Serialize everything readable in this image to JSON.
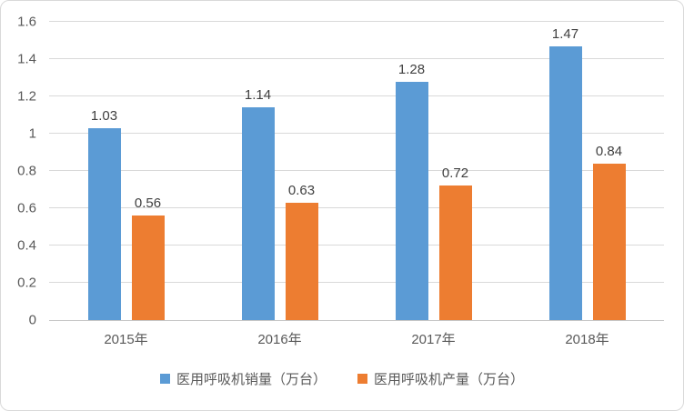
{
  "chart_data": {
    "type": "bar",
    "title": "",
    "xlabel": "",
    "ylabel": "",
    "categories": [
      "2015年",
      "2016年",
      "2017年",
      "2018年"
    ],
    "series": [
      {
        "name": "医用呼吸机销量（万台）",
        "color": "#5B9BD5",
        "values": [
          1.03,
          1.14,
          1.28,
          1.47
        ]
      },
      {
        "name": "医用呼吸机产量（万台）",
        "color": "#ED7D31",
        "values": [
          0.56,
          0.63,
          0.72,
          0.84
        ]
      }
    ],
    "ylim": [
      0,
      1.6
    ],
    "ytick_step": 0.2,
    "yticks": [
      "1.6",
      "1.4",
      "1.2",
      "1",
      "0.8",
      "0.6",
      "0.4",
      "0.2",
      "0"
    ],
    "grid": true,
    "data_labels": true,
    "legend_position": "bottom"
  },
  "colors": {
    "series_sales": "#5B9BD5",
    "series_production": "#ED7D31",
    "gridline": "#D9D9D9",
    "axis_line": "#C6C6C6",
    "tick_text": "#595959",
    "data_label_text": "#404040",
    "frame_border": "#D9D9D9",
    "background": "#FFFFFF"
  }
}
